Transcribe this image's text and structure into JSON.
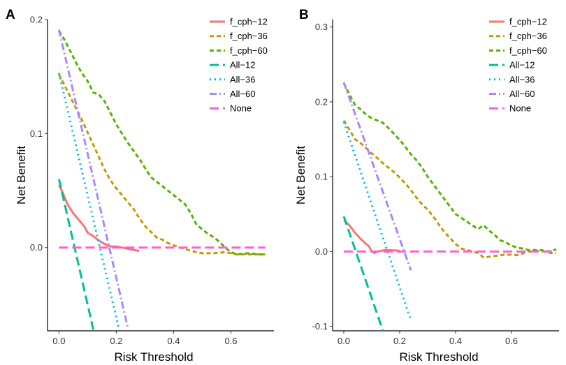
{
  "chart_data": [
    {
      "type": "line",
      "panel_label": "A",
      "xlabel": "Risk Threshold",
      "ylabel": "Net Benefit",
      "xlim": [
        -0.04,
        0.75
      ],
      "ylim": [
        -0.073,
        0.2
      ],
      "xticks": [
        0.0,
        0.2,
        0.4,
        0.6
      ],
      "xtick_labels": [
        "0.0",
        "0.2",
        "0.4",
        "0.6"
      ],
      "yticks": [
        0.0,
        0.1,
        0.2
      ],
      "ytick_labels": [
        "0.0",
        "0.1",
        "0.2"
      ],
      "grid": false,
      "legend_position": "top-right",
      "series": [
        {
          "name": "f_cph−12",
          "color": "#F8766D",
          "style": "solid",
          "points": [
            [
              0.0,
              0.055
            ],
            [
              0.01,
              0.05
            ],
            [
              0.02,
              0.044
            ],
            [
              0.03,
              0.038
            ],
            [
              0.04,
              0.034
            ],
            [
              0.05,
              0.03
            ],
            [
              0.06,
              0.027
            ],
            [
              0.07,
              0.024
            ],
            [
              0.08,
              0.021
            ],
            [
              0.09,
              0.018
            ],
            [
              0.1,
              0.013
            ],
            [
              0.12,
              0.01
            ],
            [
              0.14,
              0.006
            ],
            [
              0.16,
              0.003
            ],
            [
              0.18,
              0.001
            ],
            [
              0.2,
              0.001
            ],
            [
              0.22,
              0.0
            ],
            [
              0.24,
              -0.001
            ],
            [
              0.26,
              -0.002
            ],
            [
              0.28,
              -0.003
            ]
          ]
        },
        {
          "name": "f_cph−36",
          "color": "#C49A00",
          "style": "dashed",
          "points": [
            [
              0.0,
              0.152
            ],
            [
              0.02,
              0.142
            ],
            [
              0.04,
              0.132
            ],
            [
              0.06,
              0.122
            ],
            [
              0.08,
              0.112
            ],
            [
              0.1,
              0.101
            ],
            [
              0.12,
              0.09
            ],
            [
              0.14,
              0.079
            ],
            [
              0.16,
              0.068
            ],
            [
              0.18,
              0.059
            ],
            [
              0.2,
              0.052
            ],
            [
              0.22,
              0.046
            ],
            [
              0.24,
              0.04
            ],
            [
              0.26,
              0.034
            ],
            [
              0.28,
              0.026
            ],
            [
              0.3,
              0.019
            ],
            [
              0.32,
              0.014
            ],
            [
              0.34,
              0.009
            ],
            [
              0.36,
              0.007
            ],
            [
              0.38,
              0.004
            ],
            [
              0.4,
              0.002
            ],
            [
              0.42,
              0.0
            ],
            [
              0.44,
              -0.001
            ],
            [
              0.46,
              -0.003
            ],
            [
              0.5,
              -0.005
            ],
            [
              0.54,
              -0.005
            ],
            [
              0.58,
              -0.004
            ],
            [
              0.62,
              -0.006
            ],
            [
              0.66,
              -0.006
            ],
            [
              0.7,
              -0.006
            ],
            [
              0.72,
              -0.006
            ]
          ]
        },
        {
          "name": "f_cph−60",
          "color": "#53B400",
          "style": "dashed",
          "points": [
            [
              0.0,
              0.19
            ],
            [
              0.02,
              0.182
            ],
            [
              0.04,
              0.172
            ],
            [
              0.06,
              0.162
            ],
            [
              0.08,
              0.153
            ],
            [
              0.1,
              0.146
            ],
            [
              0.12,
              0.136
            ],
            [
              0.14,
              0.134
            ],
            [
              0.16,
              0.128
            ],
            [
              0.18,
              0.118
            ],
            [
              0.2,
              0.108
            ],
            [
              0.22,
              0.1
            ],
            [
              0.24,
              0.092
            ],
            [
              0.26,
              0.085
            ],
            [
              0.28,
              0.078
            ],
            [
              0.3,
              0.07
            ],
            [
              0.32,
              0.062
            ],
            [
              0.34,
              0.058
            ],
            [
              0.36,
              0.054
            ],
            [
              0.38,
              0.05
            ],
            [
              0.4,
              0.046
            ],
            [
              0.42,
              0.042
            ],
            [
              0.44,
              0.038
            ],
            [
              0.46,
              0.03
            ],
            [
              0.48,
              0.02
            ],
            [
              0.5,
              0.016
            ],
            [
              0.52,
              0.012
            ],
            [
              0.54,
              0.009
            ],
            [
              0.56,
              0.005
            ],
            [
              0.58,
              0.0
            ],
            [
              0.6,
              -0.004
            ],
            [
              0.62,
              -0.006
            ],
            [
              0.66,
              -0.005
            ],
            [
              0.7,
              -0.006
            ],
            [
              0.72,
              -0.006
            ]
          ]
        },
        {
          "name": "All−12",
          "color": "#00C094",
          "style": "longdash",
          "points": [
            [
              0.0,
              0.06
            ],
            [
              0.12,
              -0.072
            ]
          ]
        },
        {
          "name": "All−36",
          "color": "#00B6EB",
          "style": "dotted",
          "points": [
            [
              0.0,
              0.153
            ],
            [
              0.21,
              -0.072
            ]
          ]
        },
        {
          "name": "All−60",
          "color": "#A58AFF",
          "style": "dotdash",
          "points": [
            [
              0.0,
              0.191
            ],
            [
              0.24,
              -0.07
            ]
          ]
        },
        {
          "name": "None",
          "color": "#FB61D7",
          "style": "longdash",
          "points": [
            [
              0.0,
              0.0
            ],
            [
              0.72,
              0.0
            ]
          ]
        }
      ]
    },
    {
      "type": "line",
      "panel_label": "B",
      "xlabel": "Risk Threshold",
      "ylabel": "Net Benefit",
      "xlim": [
        -0.04,
        0.77
      ],
      "ylim": [
        -0.106,
        0.31
      ],
      "xticks": [
        0.0,
        0.2,
        0.4,
        0.6
      ],
      "xtick_labels": [
        "0.0",
        "0.2",
        "0.4",
        "0.6"
      ],
      "yticks": [
        -0.1,
        0.0,
        0.1,
        0.2,
        0.3
      ],
      "ytick_labels": [
        "-0.1",
        "0.0",
        "0.1",
        "0.2",
        "0.3"
      ],
      "grid": false,
      "legend_position": "top-right",
      "series": [
        {
          "name": "f_cph−12",
          "color": "#F8766D",
          "style": "solid",
          "points": [
            [
              0.0,
              0.042
            ],
            [
              0.02,
              0.035
            ],
            [
              0.04,
              0.025
            ],
            [
              0.06,
              0.017
            ],
            [
              0.08,
              0.01
            ],
            [
              0.09,
              0.007
            ],
            [
              0.1,
              0.0
            ],
            [
              0.11,
              -0.002
            ],
            [
              0.12,
              0.0
            ],
            [
              0.15,
              0.002
            ],
            [
              0.2,
              0.001
            ]
          ]
        },
        {
          "name": "f_cph−36",
          "color": "#C49A00",
          "style": "dashed",
          "points": [
            [
              0.0,
              0.175
            ],
            [
              0.02,
              0.163
            ],
            [
              0.04,
              0.15
            ],
            [
              0.06,
              0.145
            ],
            [
              0.08,
              0.138
            ],
            [
              0.1,
              0.131
            ],
            [
              0.12,
              0.125
            ],
            [
              0.14,
              0.118
            ],
            [
              0.16,
              0.112
            ],
            [
              0.18,
              0.106
            ],
            [
              0.2,
              0.099
            ],
            [
              0.22,
              0.091
            ],
            [
              0.24,
              0.082
            ],
            [
              0.26,
              0.072
            ],
            [
              0.28,
              0.063
            ],
            [
              0.3,
              0.056
            ],
            [
              0.32,
              0.047
            ],
            [
              0.34,
              0.036
            ],
            [
              0.36,
              0.026
            ],
            [
              0.38,
              0.018
            ],
            [
              0.4,
              0.01
            ],
            [
              0.42,
              0.004
            ],
            [
              0.44,
              0.002
            ],
            [
              0.46,
              0.0
            ],
            [
              0.48,
              -0.002
            ],
            [
              0.5,
              -0.008
            ],
            [
              0.54,
              -0.006
            ],
            [
              0.58,
              -0.004
            ],
            [
              0.62,
              -0.005
            ],
            [
              0.66,
              0.0
            ],
            [
              0.7,
              0.001
            ],
            [
              0.74,
              -0.002
            ],
            [
              0.76,
              -0.002
            ]
          ]
        },
        {
          "name": "f_cph−60",
          "color": "#53B400",
          "style": "dashed",
          "points": [
            [
              0.0,
              0.225
            ],
            [
              0.02,
              0.21
            ],
            [
              0.04,
              0.196
            ],
            [
              0.06,
              0.19
            ],
            [
              0.08,
              0.183
            ],
            [
              0.1,
              0.178
            ],
            [
              0.12,
              0.175
            ],
            [
              0.14,
              0.172
            ],
            [
              0.16,
              0.165
            ],
            [
              0.18,
              0.157
            ],
            [
              0.2,
              0.149
            ],
            [
              0.22,
              0.14
            ],
            [
              0.24,
              0.13
            ],
            [
              0.26,
              0.122
            ],
            [
              0.28,
              0.112
            ],
            [
              0.3,
              0.1
            ],
            [
              0.32,
              0.09
            ],
            [
              0.34,
              0.08
            ],
            [
              0.36,
              0.07
            ],
            [
              0.38,
              0.06
            ],
            [
              0.4,
              0.05
            ],
            [
              0.42,
              0.045
            ],
            [
              0.44,
              0.04
            ],
            [
              0.46,
              0.035
            ],
            [
              0.48,
              0.03
            ],
            [
              0.5,
              0.035
            ],
            [
              0.52,
              0.028
            ],
            [
              0.54,
              0.022
            ],
            [
              0.56,
              0.015
            ],
            [
              0.58,
              0.012
            ],
            [
              0.6,
              0.008
            ],
            [
              0.62,
              0.005
            ],
            [
              0.64,
              0.004
            ],
            [
              0.66,
              0.002
            ],
            [
              0.7,
              0.002
            ],
            [
              0.74,
              0.0
            ],
            [
              0.76,
              0.003
            ]
          ]
        },
        {
          "name": "All−12",
          "color": "#00C094",
          "style": "longdash",
          "points": [
            [
              0.0,
              0.047
            ],
            [
              0.14,
              -0.106
            ]
          ]
        },
        {
          "name": "All−36",
          "color": "#00B6EB",
          "style": "dotted",
          "points": [
            [
              0.0,
              0.173
            ],
            [
              0.24,
              -0.092
            ]
          ]
        },
        {
          "name": "All−60",
          "color": "#A58AFF",
          "style": "dotdash",
          "points": [
            [
              0.0,
              0.226
            ],
            [
              0.24,
              -0.025
            ]
          ]
        },
        {
          "name": "None",
          "color": "#FB61D7",
          "style": "longdash",
          "points": [
            [
              0.0,
              0.0
            ],
            [
              0.76,
              0.0
            ]
          ]
        }
      ]
    }
  ]
}
